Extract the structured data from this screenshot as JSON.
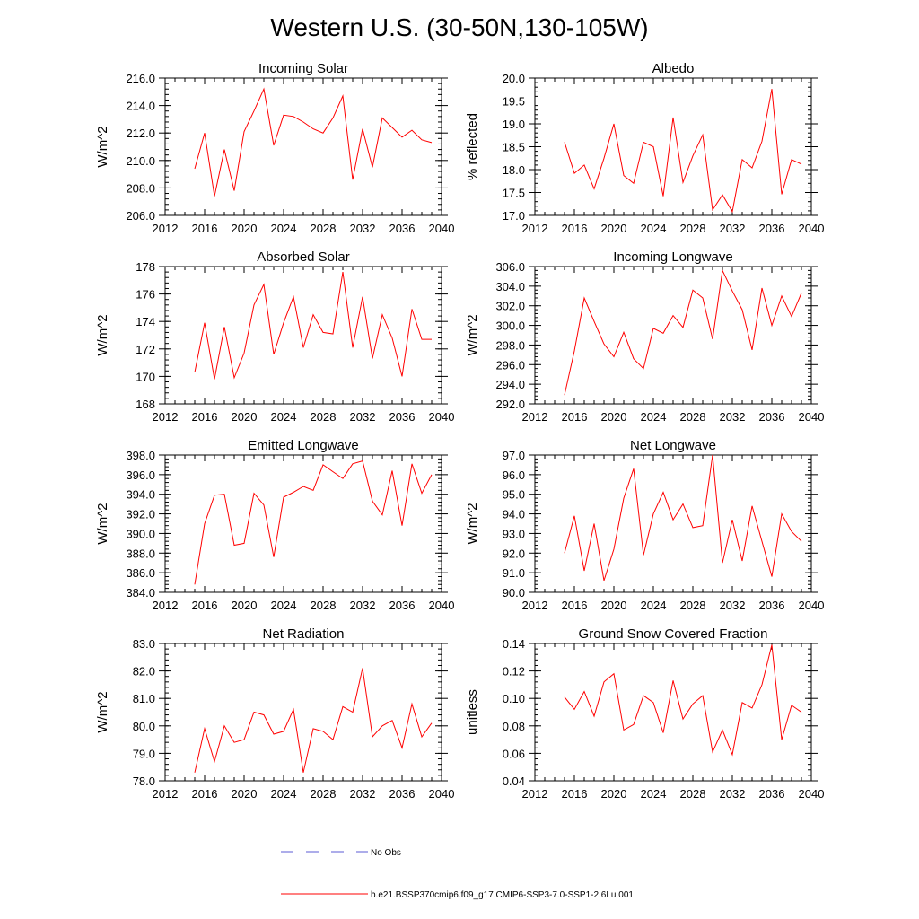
{
  "page_title": "Western U.S. (30-50N,130-105W)",
  "colors": {
    "model": "#ff0000",
    "obs": "#5b5bd6",
    "axis": "#000000"
  },
  "chart_data": [
    {
      "type": "line",
      "title": "Incoming Solar",
      "ylabel": "W/m^2",
      "xlim": [
        2012,
        2040
      ],
      "ylim": [
        206.0,
        216.0
      ],
      "y_ticks": [
        206.0,
        208.0,
        210.0,
        212.0,
        214.0,
        216.0
      ],
      "y_tick_labels": [
        "206.0",
        "208.0",
        "210.0",
        "212.0",
        "214.0",
        "216.0"
      ],
      "y_minor_step": 0.4,
      "x_ticks": [
        2012,
        2016,
        2020,
        2024,
        2028,
        2032,
        2036,
        2040
      ],
      "x_tick_labels": [
        "2012",
        "2016",
        "2020",
        "2024",
        "2028",
        "2032",
        "2036",
        "2040"
      ],
      "x": [
        2015,
        2016,
        2017,
        2018,
        2019,
        2020,
        2021,
        2022,
        2023,
        2024,
        2025,
        2026,
        2027,
        2028,
        2029,
        2030,
        2031,
        2032,
        2033,
        2034,
        2035,
        2036,
        2037,
        2038,
        2039
      ],
      "series": [
        {
          "values": [
            209.4,
            212.0,
            207.4,
            210.8,
            207.8,
            212.1,
            213.6,
            215.2,
            211.1,
            213.3,
            213.2,
            212.8,
            212.3,
            212.0,
            213.1,
            214.7,
            208.6,
            212.3,
            209.5,
            213.1,
            212.4,
            211.7,
            212.2,
            211.5,
            211.3
          ]
        }
      ]
    },
    {
      "type": "line",
      "title": "Albedo",
      "ylabel": "% reflected",
      "xlim": [
        2012,
        2040
      ],
      "ylim": [
        17.0,
        20.0
      ],
      "y_ticks": [
        17.0,
        17.5,
        18.0,
        18.5,
        19.0,
        19.5,
        20.0
      ],
      "y_tick_labels": [
        "17.0",
        "17.5",
        "18.0",
        "18.5",
        "19.0",
        "19.5",
        "20.0"
      ],
      "y_minor_step": 0.1,
      "x_ticks": [
        2012,
        2016,
        2020,
        2024,
        2028,
        2032,
        2036,
        2040
      ],
      "x_tick_labels": [
        "2012",
        "2016",
        "2020",
        "2024",
        "2028",
        "2032",
        "2036",
        "2040"
      ],
      "x": [
        2015,
        2016,
        2017,
        2018,
        2019,
        2020,
        2021,
        2022,
        2023,
        2024,
        2025,
        2026,
        2027,
        2028,
        2029,
        2030,
        2031,
        2032,
        2033,
        2034,
        2035,
        2036,
        2037,
        2038,
        2039
      ],
      "series": [
        {
          "values": [
            18.6,
            17.92,
            18.1,
            17.58,
            18.25,
            19.0,
            17.87,
            17.7,
            18.6,
            18.5,
            17.42,
            19.14,
            17.72,
            18.3,
            18.76,
            17.12,
            17.45,
            17.08,
            18.22,
            18.04,
            18.62,
            19.76,
            17.46,
            18.22,
            18.12
          ]
        }
      ]
    },
    {
      "type": "line",
      "title": "Absorbed Solar",
      "ylabel": "W/m^2",
      "xlim": [
        2012,
        2040
      ],
      "ylim": [
        168,
        178
      ],
      "y_ticks": [
        168,
        170,
        172,
        174,
        176,
        178
      ],
      "y_tick_labels": [
        "168",
        "170",
        "172",
        "174",
        "176",
        "178"
      ],
      "y_minor_step": 0.4,
      "x_ticks": [
        2012,
        2016,
        2020,
        2024,
        2028,
        2032,
        2036,
        2040
      ],
      "x_tick_labels": [
        "2012",
        "2016",
        "2020",
        "2024",
        "2028",
        "2032",
        "2036",
        "2040"
      ],
      "x": [
        2015,
        2016,
        2017,
        2018,
        2019,
        2020,
        2021,
        2022,
        2023,
        2024,
        2025,
        2026,
        2027,
        2028,
        2029,
        2030,
        2031,
        2032,
        2033,
        2034,
        2035,
        2036,
        2037,
        2038,
        2039
      ],
      "series": [
        {
          "values": [
            170.3,
            173.9,
            169.8,
            173.6,
            169.9,
            171.7,
            175.2,
            176.7,
            171.6,
            173.9,
            175.8,
            172.1,
            174.5,
            173.2,
            173.1,
            177.6,
            172.1,
            175.8,
            171.3,
            174.5,
            172.8,
            170.0,
            174.9,
            172.7,
            172.7
          ]
        }
      ]
    },
    {
      "type": "line",
      "title": "Incoming Longwave",
      "ylabel": "W/m^2",
      "xlim": [
        2012,
        2040
      ],
      "ylim": [
        292.0,
        306.0
      ],
      "y_ticks": [
        292.0,
        294.0,
        296.0,
        298.0,
        300.0,
        302.0,
        304.0,
        306.0
      ],
      "y_tick_labels": [
        "292.0",
        "294.0",
        "296.0",
        "298.0",
        "300.0",
        "302.0",
        "304.0",
        "306.0"
      ],
      "y_minor_step": 0.4,
      "x_ticks": [
        2012,
        2016,
        2020,
        2024,
        2028,
        2032,
        2036,
        2040
      ],
      "x_tick_labels": [
        "2012",
        "2016",
        "2020",
        "2024",
        "2028",
        "2032",
        "2036",
        "2040"
      ],
      "x": [
        2015,
        2016,
        2017,
        2018,
        2019,
        2020,
        2021,
        2022,
        2023,
        2024,
        2025,
        2026,
        2027,
        2028,
        2029,
        2030,
        2031,
        2032,
        2033,
        2034,
        2035,
        2036,
        2037,
        2038,
        2039
      ],
      "series": [
        {
          "values": [
            292.9,
            297.4,
            302.8,
            300.4,
            298.1,
            296.8,
            299.3,
            296.6,
            295.6,
            299.7,
            299.2,
            301.0,
            299.8,
            303.6,
            302.8,
            298.6,
            305.6,
            303.5,
            301.6,
            297.5,
            303.8,
            300.0,
            303.0,
            300.9,
            303.3
          ]
        }
      ]
    },
    {
      "type": "line",
      "title": "Emitted Longwave",
      "ylabel": "W/m^2",
      "xlim": [
        2012,
        2040
      ],
      "ylim": [
        384.0,
        398.0
      ],
      "y_ticks": [
        384.0,
        386.0,
        388.0,
        390.0,
        392.0,
        394.0,
        396.0,
        398.0
      ],
      "y_tick_labels": [
        "384.0",
        "386.0",
        "388.0",
        "390.0",
        "392.0",
        "394.0",
        "396.0",
        "398.0"
      ],
      "y_minor_step": 0.4,
      "x_ticks": [
        2012,
        2016,
        2020,
        2024,
        2028,
        2032,
        2036,
        2040
      ],
      "x_tick_labels": [
        "2012",
        "2016",
        "2020",
        "2024",
        "2028",
        "2032",
        "2036",
        "2040"
      ],
      "x": [
        2015,
        2016,
        2017,
        2018,
        2019,
        2020,
        2021,
        2022,
        2023,
        2024,
        2025,
        2026,
        2027,
        2028,
        2029,
        2030,
        2031,
        2032,
        2033,
        2034,
        2035,
        2036,
        2037,
        2038,
        2039
      ],
      "series": [
        {
          "values": [
            384.8,
            391.0,
            393.9,
            394.0,
            388.8,
            389.0,
            394.1,
            392.9,
            387.6,
            393.7,
            394.2,
            394.8,
            394.4,
            397.0,
            396.3,
            395.6,
            397.1,
            397.4,
            393.3,
            391.9,
            396.4,
            390.8,
            397.1,
            394.1,
            396.0
          ]
        }
      ]
    },
    {
      "type": "line",
      "title": "Net Longwave",
      "ylabel": "W/m^2",
      "xlim": [
        2012,
        2040
      ],
      "ylim": [
        90.0,
        97.0
      ],
      "y_ticks": [
        90.0,
        91.0,
        92.0,
        93.0,
        94.0,
        95.0,
        96.0,
        97.0
      ],
      "y_tick_labels": [
        "90.0",
        "91.0",
        "92.0",
        "93.0",
        "94.0",
        "95.0",
        "96.0",
        "97.0"
      ],
      "y_minor_step": 0.2,
      "x_ticks": [
        2012,
        2016,
        2020,
        2024,
        2028,
        2032,
        2036,
        2040
      ],
      "x_tick_labels": [
        "2012",
        "2016",
        "2020",
        "2024",
        "2028",
        "2032",
        "2036",
        "2040"
      ],
      "x": [
        2015,
        2016,
        2017,
        2018,
        2019,
        2020,
        2021,
        2022,
        2023,
        2024,
        2025,
        2026,
        2027,
        2028,
        2029,
        2030,
        2031,
        2032,
        2033,
        2034,
        2035,
        2036,
        2037,
        2038,
        2039
      ],
      "series": [
        {
          "values": [
            92.0,
            93.9,
            91.1,
            93.5,
            90.6,
            92.2,
            94.8,
            96.3,
            91.9,
            94.0,
            95.1,
            93.7,
            94.5,
            93.3,
            93.4,
            97.0,
            91.5,
            93.7,
            91.6,
            94.4,
            92.6,
            90.8,
            94.0,
            93.1,
            92.6
          ]
        }
      ]
    },
    {
      "type": "line",
      "title": "Net Radiation",
      "ylabel": "W/m^2",
      "xlim": [
        2012,
        2040
      ],
      "ylim": [
        78.0,
        83.0
      ],
      "y_ticks": [
        78.0,
        79.0,
        80.0,
        81.0,
        82.0,
        83.0
      ],
      "y_tick_labels": [
        "78.0",
        "79.0",
        "80.0",
        "81.0",
        "82.0",
        "83.0"
      ],
      "y_minor_step": 0.2,
      "x_ticks": [
        2012,
        2016,
        2020,
        2024,
        2028,
        2032,
        2036,
        2040
      ],
      "x_tick_labels": [
        "2012",
        "2016",
        "2020",
        "2024",
        "2028",
        "2032",
        "2036",
        "2040"
      ],
      "x": [
        2015,
        2016,
        2017,
        2018,
        2019,
        2020,
        2021,
        2022,
        2023,
        2024,
        2025,
        2026,
        2027,
        2028,
        2029,
        2030,
        2031,
        2032,
        2033,
        2034,
        2035,
        2036,
        2037,
        2038,
        2039
      ],
      "series": [
        {
          "values": [
            78.3,
            79.9,
            78.7,
            80.0,
            79.4,
            79.5,
            80.5,
            80.4,
            79.7,
            79.8,
            80.6,
            78.3,
            79.9,
            79.8,
            79.5,
            80.7,
            80.5,
            82.1,
            79.6,
            80.0,
            80.2,
            79.2,
            80.8,
            79.6,
            80.1
          ]
        }
      ]
    },
    {
      "type": "line",
      "title": "Ground Snow Covered Fraction",
      "ylabel": "unitless",
      "xlim": [
        2012,
        2040
      ],
      "ylim": [
        0.04,
        0.14
      ],
      "y_ticks": [
        0.04,
        0.06,
        0.08,
        0.1,
        0.12,
        0.14
      ],
      "y_tick_labels": [
        "0.04",
        "0.06",
        "0.08",
        "0.10",
        "0.12",
        "0.14"
      ],
      "y_minor_step": 0.004,
      "x_ticks": [
        2012,
        2016,
        2020,
        2024,
        2028,
        2032,
        2036,
        2040
      ],
      "x_tick_labels": [
        "2012",
        "2016",
        "2020",
        "2024",
        "2028",
        "2032",
        "2036",
        "2040"
      ],
      "x": [
        2015,
        2016,
        2017,
        2018,
        2019,
        2020,
        2021,
        2022,
        2023,
        2024,
        2025,
        2026,
        2027,
        2028,
        2029,
        2030,
        2031,
        2032,
        2033,
        2034,
        2035,
        2036,
        2037,
        2038,
        2039
      ],
      "series": [
        {
          "values": [
            0.101,
            0.092,
            0.105,
            0.087,
            0.112,
            0.118,
            0.077,
            0.081,
            0.102,
            0.097,
            0.075,
            0.113,
            0.085,
            0.096,
            0.102,
            0.061,
            0.077,
            0.059,
            0.097,
            0.093,
            0.11,
            0.139,
            0.07,
            0.095,
            0.09
          ]
        }
      ]
    }
  ],
  "legend": {
    "placement": "bottom-center",
    "items": [
      {
        "label": "No Obs",
        "style": "dashed",
        "color": "#5b5bd6"
      },
      {
        "label": "b.e21.BSSP370cmip6.f09_g17.CMIP6-SSP3-7.0-SSP1-2.6Lu.001",
        "style": "solid",
        "color": "#ff0000"
      }
    ]
  }
}
